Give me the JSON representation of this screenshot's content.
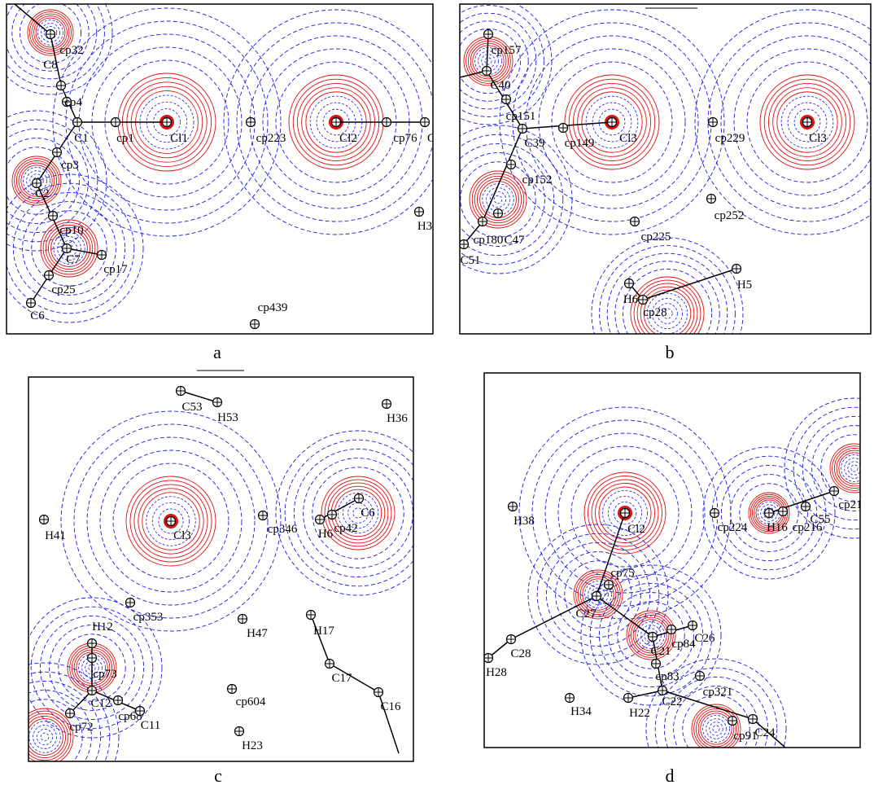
{
  "panels": [
    {
      "caption": "a",
      "nodes": [
        "cp32",
        "C8",
        "cp4",
        "C1",
        "cp1",
        "Cl1",
        "cp223",
        "Cl2",
        "cp76",
        "C",
        "cp3",
        "C2",
        "cp10",
        "C7",
        "cp17",
        "cp25",
        "C6",
        "cp439",
        "H3"
      ]
    },
    {
      "caption": "b",
      "nodes": [
        "cp157",
        "C40",
        "cp151",
        "C39",
        "cp149",
        "Cl3",
        "cp229",
        "Cl3",
        "cp152",
        "cp252",
        "cp225",
        "cp180",
        "C47",
        "C51",
        "H5",
        "H6",
        "cp28"
      ]
    },
    {
      "caption": "c",
      "nodes": [
        "C53",
        "H53",
        "H36",
        "H41",
        "Cl3",
        "cp346",
        "H6",
        "cp42",
        "C6",
        "cp353",
        "H47",
        "H17",
        "H12",
        "cp73",
        "C12",
        "cp68",
        "C11",
        "C17",
        "C16",
        "cp604",
        "H23",
        "cp72"
      ]
    },
    {
      "caption": "d",
      "nodes": [
        "H38",
        "Cl2",
        "cp224",
        "H16",
        "cp216",
        "C55",
        "cp21",
        "cp75",
        "C27",
        "C28",
        "H28",
        "C26",
        "cp84",
        "C21",
        "cp83",
        "cp321",
        "H34",
        "H22",
        "C22",
        "C24",
        "cp91"
      ]
    }
  ]
}
